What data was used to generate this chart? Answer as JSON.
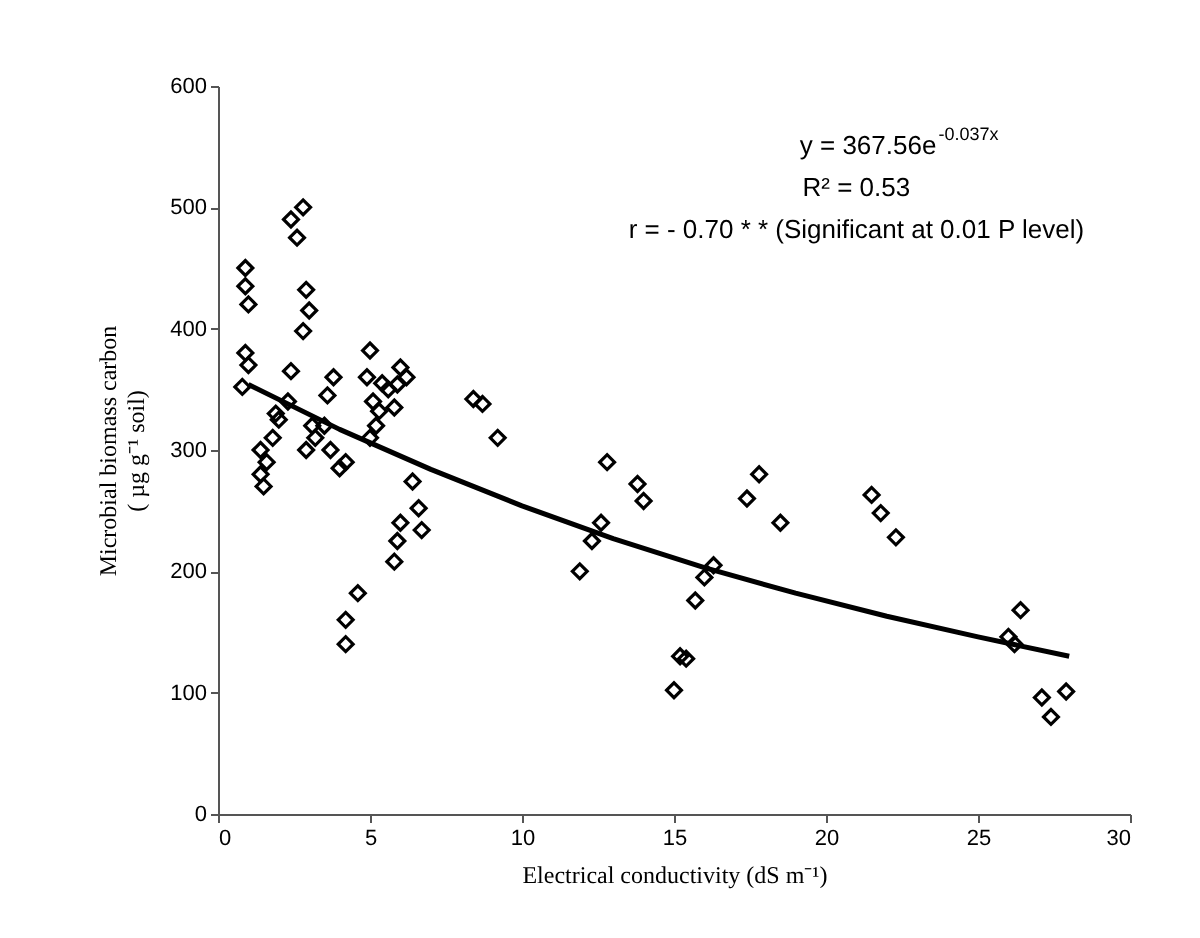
{
  "chart_data": {
    "type": "scatter",
    "xlabel": "Electrical conductivity (dS m⁻¹)",
    "ylabel": "Microbial biomass carbon\n( µg g⁻¹ soil)",
    "xlim": [
      0,
      30
    ],
    "xticks": [
      0,
      5,
      10,
      15,
      20,
      25,
      30
    ],
    "ylim": [
      0,
      600
    ],
    "yticks": [
      0,
      100,
      200,
      300,
      400,
      500,
      600
    ],
    "grid": false,
    "annotations": [
      "y = 367.56e$^{-0.037x}$",
      "R² = 0.53",
      "r = - 0.70 * * (Significant at 0.01 P level)"
    ],
    "series": [
      {
        "color": "#000000",
        "marker": "diamond",
        "x": [
          0.9,
          0.9,
          1.0,
          0.9,
          1.0,
          0.8,
          2.4,
          2.8,
          2.6,
          2.9,
          3.0,
          2.8,
          2.4,
          2.3,
          3.1,
          2.9,
          3.2,
          1.4,
          1.6,
          1.4,
          1.5,
          1.8,
          2.0,
          1.9,
          3.6,
          3.8,
          3.7,
          4.0,
          4.2,
          3.5,
          4.2,
          4.2,
          4.6,
          5.0,
          4.9,
          5.4,
          5.1,
          5.3,
          5.2,
          5.0,
          5.6,
          6.0,
          6.2,
          5.9,
          5.8,
          6.0,
          5.9,
          5.8,
          6.4,
          6.6,
          6.7,
          8.4,
          8.7,
          9.2,
          11.9,
          12.3,
          12.6,
          12.8,
          13.8,
          14.0,
          15.0,
          15.2,
          15.4,
          15.7,
          16.0,
          16.3,
          17.4,
          17.8,
          18.5,
          21.5,
          21.8,
          22.3,
          26.0,
          26.2,
          26.4,
          27.1,
          27.4,
          27.9
        ],
        "values": [
          450,
          435,
          420,
          380,
          370,
          352,
          490,
          500,
          475,
          432,
          415,
          398,
          365,
          340,
          320,
          300,
          310,
          300,
          290,
          280,
          270,
          310,
          325,
          330,
          345,
          360,
          300,
          285,
          290,
          320,
          160,
          140,
          182,
          382,
          360,
          355,
          340,
          332,
          320,
          310,
          350,
          368,
          360,
          354,
          335,
          240,
          225,
          208,
          274,
          252,
          234,
          342,
          338,
          310,
          200,
          225,
          240,
          290,
          272,
          258,
          102,
          130,
          128,
          176,
          195,
          205,
          260,
          280,
          240,
          263,
          248,
          228,
          146,
          140,
          168,
          96,
          80,
          101
        ]
      },
      {
        "type": "line",
        "color": "#000000",
        "line_style": "solid",
        "x": [
          1,
          4,
          7,
          10,
          13,
          16,
          19,
          22,
          25,
          28
        ],
        "values": [
          354,
          317,
          284,
          254,
          227,
          203,
          182,
          163,
          146,
          130
        ]
      }
    ]
  }
}
